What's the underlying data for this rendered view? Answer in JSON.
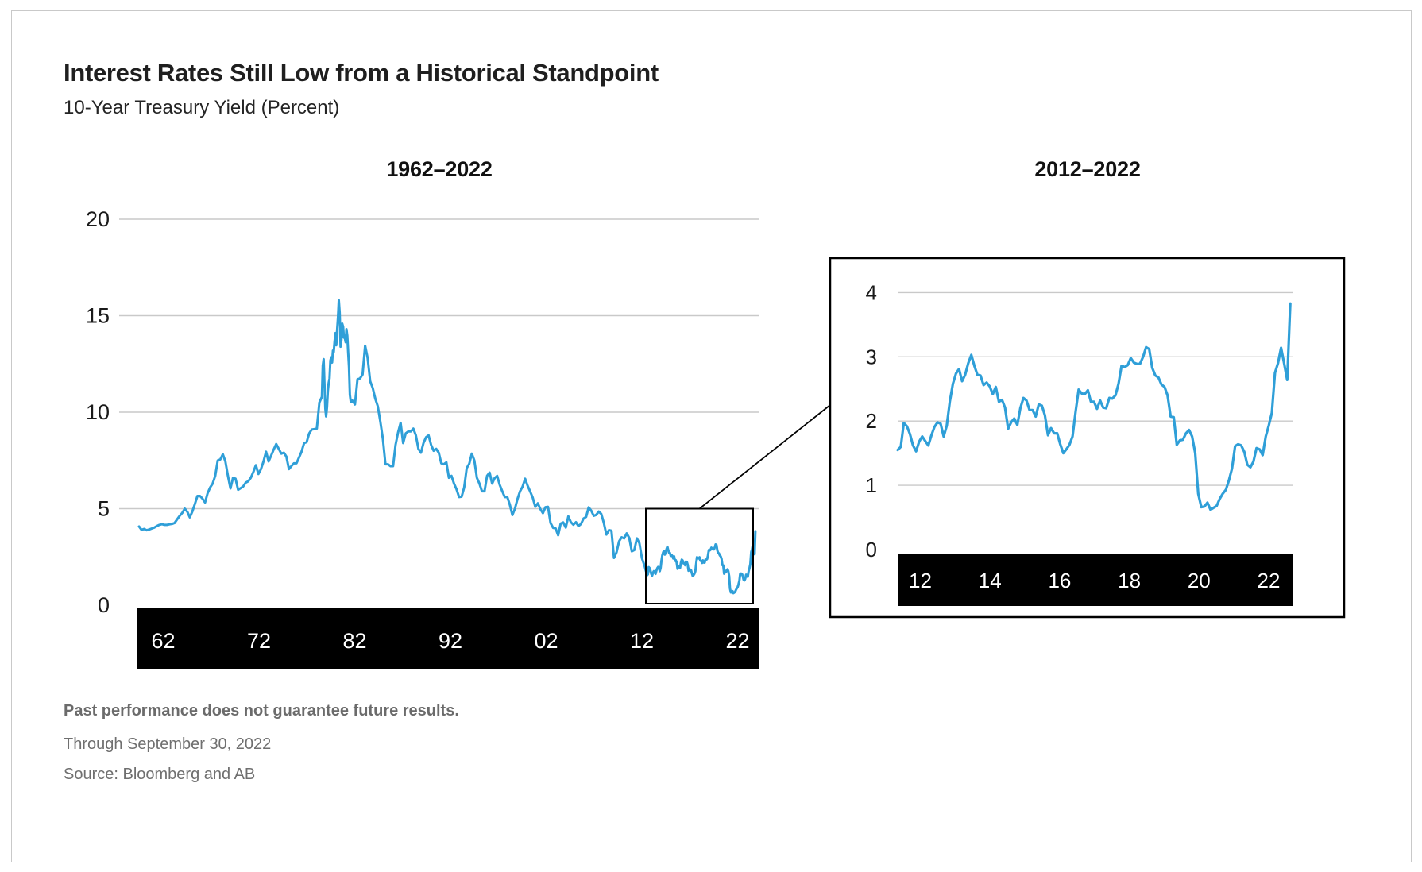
{
  "header": {
    "title": "Interest Rates Still Low from a Historical Standpoint",
    "subtitle": "10-Year Treasury Yield (Percent)"
  },
  "footer": {
    "disclaimer": "Past performance does not guarantee future results.",
    "through": "Through September 30, 2022",
    "source": "Source: Bloomberg and AB"
  },
  "colors": {
    "line": "#2f9fd8",
    "grid": "#c9c9c9",
    "band": "#000000",
    "band_text": "#ffffff",
    "axis_text": "#1a1a1a",
    "annotation": "#000000"
  },
  "chart_data": [
    {
      "type": "line",
      "title": "1962–2022",
      "ylabel": "Yield (Percent)",
      "ylim": [
        0,
        20
      ],
      "xlim": [
        1962,
        2022.75
      ],
      "y_ticks": [
        20,
        15,
        10,
        5,
        0
      ],
      "x_tick_labels": [
        "62",
        "72",
        "82",
        "92",
        "02",
        "12",
        "22"
      ],
      "grid": "horizontal",
      "highlight_region": {
        "x_start": 2012,
        "x_end": 2022.75,
        "y_min": 0,
        "y_max": 5
      },
      "series_segments": [
        {
          "start": 1962.0,
          "step": 0.25,
          "values": [
            4.08,
            3.9,
            3.95,
            3.88,
            3.92,
            3.97,
            4.02,
            4.1,
            4.16,
            4.2,
            4.16,
            4.16,
            4.19,
            4.21,
            4.26,
            4.45,
            4.63,
            4.78,
            5.0,
            4.84,
            4.55,
            4.85,
            5.24,
            5.66,
            5.66,
            5.52,
            5.32,
            5.8,
            6.1,
            6.3,
            6.7,
            7.5,
            7.55,
            7.82,
            7.45,
            6.7,
            6.05,
            6.6,
            6.55,
            5.98,
            6.06,
            6.15,
            6.35,
            6.42,
            6.6,
            6.9,
            7.25,
            6.8,
            7.05,
            7.45,
            7.95,
            7.45,
            7.75,
            8.06,
            8.35,
            8.1,
            7.85,
            7.9,
            7.7,
            7.05,
            7.21,
            7.35,
            7.35,
            7.65,
            7.96,
            8.4,
            8.45,
            8.9,
            9.1,
            9.12,
            9.15,
            10.5
          ]
        },
        {
          "start": 1980.0,
          "step": 0.08333,
          "values": [
            10.8,
            12.41,
            12.75,
            11.47,
            10.18,
            9.78,
            10.25,
            11.1,
            11.51,
            11.75,
            12.68,
            12.84,
            12.57,
            13.19,
            13.12,
            13.68,
            14.1,
            13.47,
            14.28,
            14.94,
            15.8,
            15.15,
            13.39,
            13.72,
            14.59,
            14.43,
            13.86,
            13.87,
            13.62,
            14.3,
            13.95,
            13.06,
            12.34,
            10.91,
            10.55,
            10.54
          ]
        },
        {
          "start": 1983.0,
          "step": 0.25,
          "values": [
            10.6,
            10.4,
            11.7,
            11.75,
            11.95,
            13.45,
            12.8,
            11.6,
            11.25,
            10.7,
            10.3,
            9.5,
            8.6,
            7.3,
            7.3,
            7.2,
            7.2,
            8.3,
            8.95,
            9.45,
            8.4,
            8.9,
            9.0,
            9.0,
            9.15,
            8.8,
            8.1,
            7.9,
            8.4,
            8.7,
            8.8,
            8.3,
            8.0,
            8.1,
            7.9,
            7.35,
            7.3,
            7.4,
            6.6,
            6.7,
            6.3,
            6.0,
            5.6,
            5.62,
            6.1,
            7.1,
            7.33,
            7.85,
            7.5,
            6.6,
            6.3,
            5.9,
            5.9,
            6.7,
            6.87,
            6.3,
            6.58,
            6.7,
            6.24,
            5.91,
            5.6,
            5.6,
            5.2,
            4.67,
            5.0,
            5.5,
            5.9,
            6.14,
            6.55,
            6.18,
            5.89,
            5.57,
            5.1,
            5.28,
            4.98,
            4.77,
            5.08,
            5.1,
            4.26,
            4.01,
            3.98,
            3.62,
            4.23,
            4.29,
            4.02,
            4.6,
            4.3,
            4.17,
            4.3,
            4.1,
            4.21,
            4.49,
            4.57,
            5.07,
            4.9,
            4.63,
            4.68,
            4.85,
            4.73,
            4.26,
            3.66,
            3.89,
            3.86,
            2.45,
            2.74,
            3.31,
            3.52,
            3.46,
            3.72,
            3.49,
            2.79,
            2.86,
            3.46,
            3.21,
            2.43,
            2.05
          ]
        },
        {
          "start": 2012.0,
          "step": 0.08333,
          "values": [
            1.55,
            1.6,
            1.97,
            1.92,
            1.8,
            1.62,
            1.53,
            1.68,
            1.76,
            1.69,
            1.62,
            1.78,
            1.91,
            1.98,
            1.96,
            1.76,
            1.93,
            2.3,
            2.58,
            2.74,
            2.81,
            2.62,
            2.72,
            2.9,
            3.03,
            2.86,
            2.72,
            2.71,
            2.56,
            2.6,
            2.54,
            2.42,
            2.53,
            2.3,
            2.33,
            2.21,
            1.88,
            1.98,
            2.04,
            1.94,
            2.2,
            2.36,
            2.32,
            2.17,
            2.17,
            2.07,
            2.26,
            2.24,
            2.09,
            1.78,
            1.89,
            1.81,
            1.81,
            1.64,
            1.5,
            1.56,
            1.63,
            1.76,
            2.14,
            2.49,
            2.43,
            2.42,
            2.48,
            2.3,
            2.3,
            2.19,
            2.32,
            2.21,
            2.2,
            2.36,
            2.35,
            2.4,
            2.58,
            2.86,
            2.84,
            2.87,
            2.98,
            2.91,
            2.89,
            2.89,
            3.0,
            3.15,
            3.12,
            2.83,
            2.71,
            2.68,
            2.57,
            2.53,
            2.4,
            2.07,
            2.06,
            1.63,
            1.7,
            1.71,
            1.81,
            1.86,
            1.76,
            1.5,
            0.87,
            0.66,
            0.67,
            0.73,
            0.62,
            0.65,
            0.68,
            0.79,
            0.87,
            0.93,
            1.08,
            1.26,
            1.61,
            1.64,
            1.62,
            1.52,
            1.32,
            1.28,
            1.37,
            1.58,
            1.56,
            1.47,
            1.76,
            1.93,
            2.13,
            2.75,
            2.9,
            3.14,
            2.9,
            2.64,
            3.83
          ]
        }
      ]
    },
    {
      "type": "line",
      "title": "2012–2022",
      "ylabel": "Yield (Percent)",
      "ylim": [
        0,
        4.5
      ],
      "xlim": [
        2012,
        2022.75
      ],
      "y_ticks": [
        4,
        3,
        2,
        1,
        0
      ],
      "x_tick_labels": [
        "12",
        "14",
        "16",
        "18",
        "20",
        "22"
      ],
      "grid": "horizontal",
      "series_segments": [
        {
          "start": 2012.0,
          "step": 0.08333,
          "values": [
            1.55,
            1.6,
            1.97,
            1.92,
            1.8,
            1.62,
            1.53,
            1.68,
            1.76,
            1.69,
            1.62,
            1.78,
            1.91,
            1.98,
            1.96,
            1.76,
            1.93,
            2.3,
            2.58,
            2.74,
            2.81,
            2.62,
            2.72,
            2.9,
            3.03,
            2.86,
            2.72,
            2.71,
            2.56,
            2.6,
            2.54,
            2.42,
            2.53,
            2.3,
            2.33,
            2.21,
            1.88,
            1.98,
            2.04,
            1.94,
            2.2,
            2.36,
            2.32,
            2.17,
            2.17,
            2.07,
            2.26,
            2.24,
            2.09,
            1.78,
            1.89,
            1.81,
            1.81,
            1.64,
            1.5,
            1.56,
            1.63,
            1.76,
            2.14,
            2.49,
            2.43,
            2.42,
            2.48,
            2.3,
            2.3,
            2.19,
            2.32,
            2.21,
            2.2,
            2.36,
            2.35,
            2.4,
            2.58,
            2.86,
            2.84,
            2.87,
            2.98,
            2.91,
            2.89,
            2.89,
            3.0,
            3.15,
            3.12,
            2.83,
            2.71,
            2.68,
            2.57,
            2.53,
            2.4,
            2.07,
            2.06,
            1.63,
            1.7,
            1.71,
            1.81,
            1.86,
            1.76,
            1.5,
            0.87,
            0.66,
            0.67,
            0.73,
            0.62,
            0.65,
            0.68,
            0.79,
            0.87,
            0.93,
            1.08,
            1.26,
            1.61,
            1.64,
            1.62,
            1.52,
            1.32,
            1.28,
            1.37,
            1.58,
            1.56,
            1.47,
            1.76,
            1.93,
            2.13,
            2.75,
            2.9,
            3.14,
            2.9,
            2.64,
            3.83
          ]
        }
      ]
    }
  ]
}
